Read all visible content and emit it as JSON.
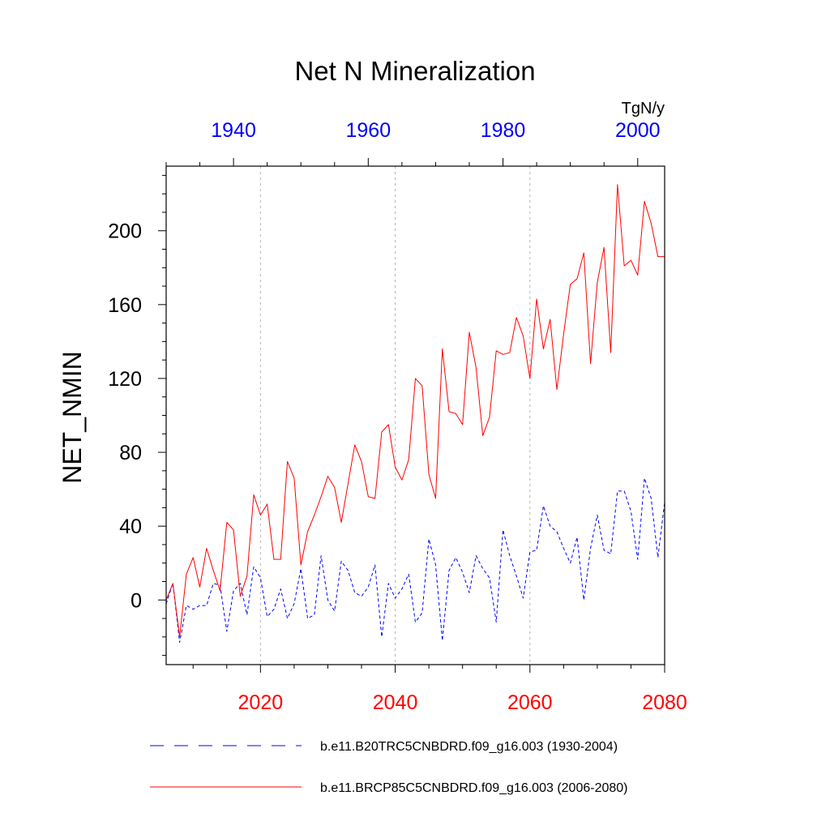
{
  "chart_data": {
    "type": "line",
    "title": "Net N Mineralization",
    "units": "TgN/y",
    "ylabel": "NET_NMIN",
    "ylim": [
      -35,
      235
    ],
    "yticks": [
      0,
      40,
      80,
      120,
      160,
      200
    ],
    "y_minor_step": 10,
    "grid": "vertical dashed at major bottom-axis ticks",
    "x_bottom": {
      "color": "#ff0000",
      "range": [
        2006,
        2080
      ],
      "ticks": [
        2020,
        2040,
        2060,
        2080
      ],
      "minor_step": 5
    },
    "x_top": {
      "color": "#0000ff",
      "range": [
        1930,
        2004
      ],
      "ticks": [
        1940,
        1960,
        1980,
        2000
      ],
      "minor_step": 5
    },
    "legend_position": "bottom",
    "series": [
      {
        "name": "b.e11.B20TRC5CNBDRD.f09_g16.003 (1930-2004)",
        "axis": "top",
        "color": "#0000ff",
        "style": "dashed",
        "x_start": 1930,
        "values": [
          -2,
          9,
          -23,
          -3,
          -5,
          -3,
          -3,
          9,
          8,
          -17,
          5,
          9,
          -8,
          18,
          12,
          -9,
          -5,
          6,
          -10,
          -2,
          17,
          -10,
          -8,
          24,
          0,
          -6,
          21,
          16,
          4,
          2,
          7,
          19,
          -20,
          9,
          1,
          6,
          14,
          -12,
          -7,
          33,
          19,
          -22,
          16,
          23,
          15,
          4,
          24,
          17,
          12,
          -12,
          38,
          24,
          13,
          1,
          26,
          27,
          51,
          40,
          37,
          28,
          20,
          34,
          0,
          28,
          46,
          27,
          25,
          59,
          59,
          48,
          22,
          66,
          55,
          23,
          53
        ]
      },
      {
        "name": "b.e11.BRCP85C5CNBDRD.f09_g16.003 (2006-2080)",
        "axis": "bottom",
        "color": "#ff0000",
        "style": "solid",
        "x_start": 2006,
        "values": [
          0,
          9,
          -20,
          14,
          23,
          7,
          28,
          16,
          5,
          42,
          38,
          2,
          13,
          57,
          46,
          52,
          22,
          22,
          75,
          66,
          19,
          37,
          46,
          56,
          67,
          61,
          42,
          63,
          84,
          75,
          56,
          55,
          91,
          95,
          72,
          65,
          76,
          120,
          116,
          68,
          55,
          136,
          102,
          101,
          95,
          145,
          126,
          89,
          99,
          135,
          133,
          134,
          153,
          143,
          120,
          163,
          136,
          152,
          114,
          144,
          171,
          174,
          188,
          128,
          172,
          191,
          134,
          225,
          181,
          184,
          176,
          216,
          204,
          186,
          186
        ]
      }
    ]
  }
}
